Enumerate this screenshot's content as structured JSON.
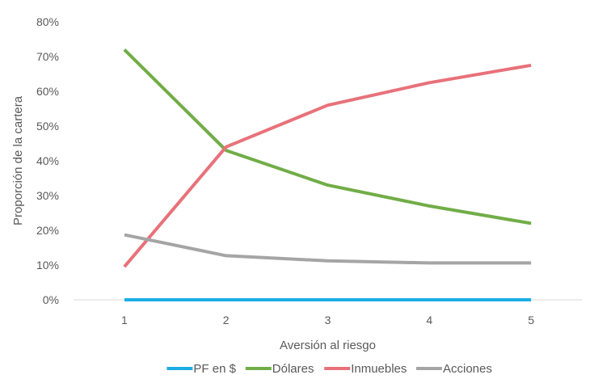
{
  "chart_data": {
    "type": "line",
    "title": "",
    "xlabel": "Aversión al riesgo",
    "ylabel": "Proporción de la cartera",
    "x": [
      1,
      2,
      3,
      4,
      5
    ],
    "xticks": [
      "1",
      "2",
      "3",
      "4",
      "5"
    ],
    "ylim": [
      0,
      0.8
    ],
    "yticks": [
      "0%",
      "10%",
      "20%",
      "30%",
      "40%",
      "50%",
      "60%",
      "70%",
      "80%"
    ],
    "grid": false,
    "legend_position": "bottom",
    "series": [
      {
        "name": "PF en $",
        "color": "#1cade4",
        "values": [
          0.0,
          0.0,
          0.0,
          0.0,
          0.0
        ]
      },
      {
        "name": "Dólares",
        "color": "#71ad47",
        "values": [
          0.72,
          0.43,
          0.33,
          0.27,
          0.22
        ]
      },
      {
        "name": "Inmuebles",
        "color": "#e8717a",
        "values": [
          0.095,
          0.44,
          0.56,
          0.625,
          0.675
        ]
      },
      {
        "name": "Acciones",
        "color": "#a5a5a5",
        "values": [
          0.187,
          0.127,
          0.112,
          0.106,
          0.106
        ]
      }
    ]
  }
}
